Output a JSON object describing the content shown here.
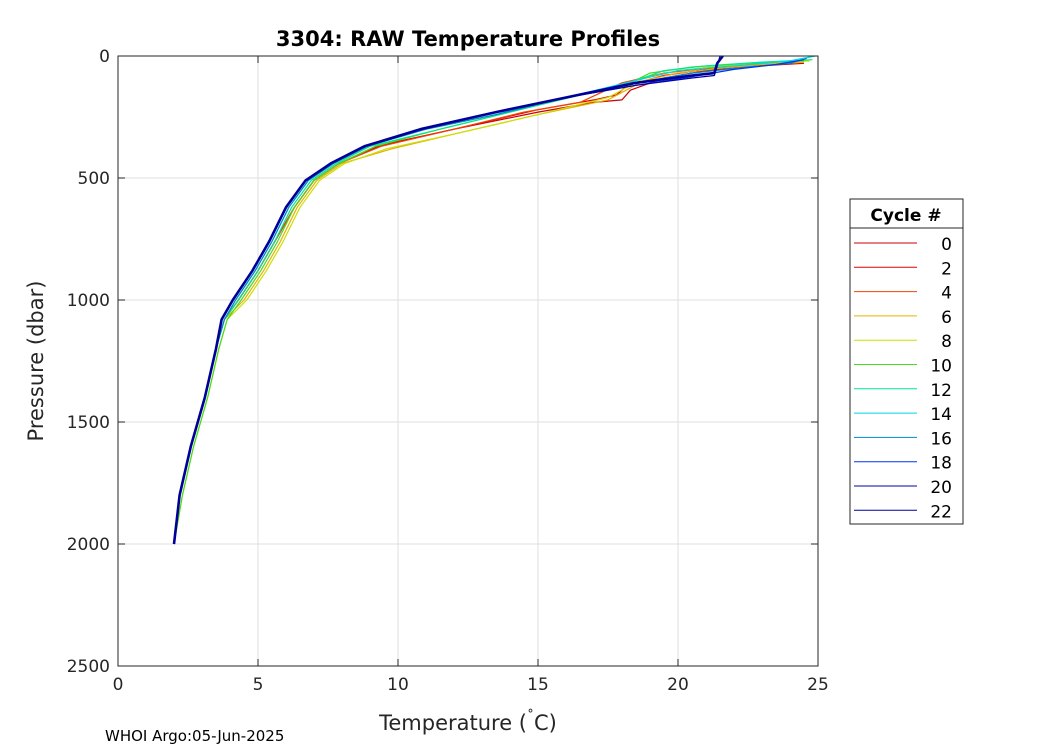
{
  "footer": "WHOI Argo:05-Jun-2025",
  "chart_data": {
    "type": "line",
    "title": "3304: RAW Temperature Profiles",
    "xlabel": "Temperature (",
    "xlabel_degree": "˚",
    "xlabel_unit": "C)",
    "ylabel": "Pressure (dbar)",
    "xlim": [
      0,
      25
    ],
    "ylim": [
      0,
      2500
    ],
    "y_reversed": true,
    "grid": true,
    "x_ticks": [
      "0",
      "5",
      "10",
      "15",
      "20",
      "25"
    ],
    "y_ticks": [
      "0",
      "500",
      "1000",
      "1500",
      "2000",
      "2500"
    ],
    "legend": {
      "title": "Cycle #",
      "placement": "right"
    },
    "series": [
      {
        "name": "0",
        "color": "#cc0000",
        "points": [
          [
            2.0,
            2000
          ],
          [
            2.2,
            1800
          ],
          [
            2.6,
            1600
          ],
          [
            3.1,
            1400
          ],
          [
            3.5,
            1200
          ],
          [
            3.8,
            1080
          ],
          [
            4.3,
            1000
          ],
          [
            5.0,
            880
          ],
          [
            5.6,
            760
          ],
          [
            6.3,
            620
          ],
          [
            7.0,
            510
          ],
          [
            7.9,
            440
          ],
          [
            9.3,
            370
          ],
          [
            12.0,
            300
          ],
          [
            15.0,
            230
          ],
          [
            17.0,
            190
          ],
          [
            18.0,
            180
          ],
          [
            18.3,
            140
          ],
          [
            19.5,
            90
          ],
          [
            21.0,
            60
          ],
          [
            23.0,
            40
          ],
          [
            24.5,
            30
          ]
        ]
      },
      {
        "name": "2",
        "color": "#e60000",
        "points": [
          [
            2.0,
            2000
          ],
          [
            2.2,
            1800
          ],
          [
            2.6,
            1600
          ],
          [
            3.1,
            1400
          ],
          [
            3.5,
            1200
          ],
          [
            3.8,
            1080
          ],
          [
            4.3,
            1000
          ],
          [
            5.0,
            880
          ],
          [
            5.6,
            760
          ],
          [
            6.3,
            620
          ],
          [
            7.0,
            510
          ],
          [
            7.9,
            440
          ],
          [
            9.2,
            370
          ],
          [
            12.0,
            300
          ],
          [
            15.0,
            220
          ],
          [
            17.0,
            180
          ],
          [
            17.8,
            160
          ],
          [
            18.2,
            120
          ],
          [
            19.5,
            80
          ],
          [
            21.0,
            55
          ],
          [
            22.5,
            40
          ],
          [
            24.0,
            30
          ]
        ]
      },
      {
        "name": "4",
        "color": "#ee4400",
        "points": [
          [
            2.0,
            2000
          ],
          [
            2.2,
            1800
          ],
          [
            2.6,
            1600
          ],
          [
            3.1,
            1400
          ],
          [
            3.5,
            1200
          ],
          [
            3.8,
            1080
          ],
          [
            4.3,
            1000
          ],
          [
            5.0,
            880
          ],
          [
            5.6,
            760
          ],
          [
            6.3,
            620
          ],
          [
            7.0,
            510
          ],
          [
            7.9,
            440
          ],
          [
            9.4,
            370
          ],
          [
            12.0,
            300
          ],
          [
            14.5,
            230
          ],
          [
            16.5,
            190
          ],
          [
            18.0,
            110
          ],
          [
            19.5,
            70
          ],
          [
            21.0,
            50
          ],
          [
            22.5,
            35
          ],
          [
            24.0,
            25
          ]
        ]
      },
      {
        "name": "6",
        "color": "#e6b000",
        "points": [
          [
            2.0,
            2000
          ],
          [
            2.2,
            1800
          ],
          [
            2.6,
            1600
          ],
          [
            3.1,
            1400
          ],
          [
            3.5,
            1200
          ],
          [
            3.8,
            1080
          ],
          [
            4.5,
            1000
          ],
          [
            5.2,
            880
          ],
          [
            5.8,
            760
          ],
          [
            6.4,
            620
          ],
          [
            7.1,
            510
          ],
          [
            8.0,
            440
          ],
          [
            9.8,
            380
          ],
          [
            12.0,
            320
          ],
          [
            15.0,
            240
          ],
          [
            17.5,
            180
          ],
          [
            18.8,
            100
          ],
          [
            20.0,
            70
          ],
          [
            21.5,
            50
          ],
          [
            23.0,
            35
          ],
          [
            24.5,
            25
          ]
        ]
      },
      {
        "name": "8",
        "color": "#c8e000",
        "points": [
          [
            2.0,
            2000
          ],
          [
            2.3,
            1800
          ],
          [
            2.7,
            1600
          ],
          [
            3.2,
            1400
          ],
          [
            3.6,
            1200
          ],
          [
            3.9,
            1080
          ],
          [
            4.6,
            1000
          ],
          [
            5.3,
            880
          ],
          [
            5.9,
            760
          ],
          [
            6.5,
            620
          ],
          [
            7.2,
            510
          ],
          [
            8.1,
            440
          ],
          [
            9.6,
            380
          ],
          [
            12.0,
            320
          ],
          [
            15.0,
            240
          ],
          [
            17.5,
            170
          ],
          [
            18.8,
            90
          ],
          [
            20.0,
            60
          ],
          [
            21.5,
            40
          ],
          [
            23.0,
            30
          ],
          [
            24.7,
            20
          ]
        ]
      },
      {
        "name": "10",
        "color": "#44dd22",
        "points": [
          [
            2.0,
            2000
          ],
          [
            2.3,
            1800
          ],
          [
            2.7,
            1600
          ],
          [
            3.2,
            1400
          ],
          [
            3.6,
            1200
          ],
          [
            3.9,
            1080
          ],
          [
            4.4,
            1000
          ],
          [
            5.1,
            880
          ],
          [
            5.7,
            760
          ],
          [
            6.3,
            620
          ],
          [
            7.0,
            510
          ],
          [
            7.9,
            440
          ],
          [
            9.2,
            370
          ],
          [
            11.5,
            300
          ],
          [
            14.0,
            230
          ],
          [
            16.5,
            160
          ],
          [
            18.3,
            110
          ],
          [
            19.0,
            70
          ],
          [
            20.5,
            45
          ],
          [
            22.5,
            30
          ],
          [
            24.5,
            20
          ]
        ]
      },
      {
        "name": "12",
        "color": "#00e690",
        "points": [
          [
            2.0,
            2000
          ],
          [
            2.2,
            1800
          ],
          [
            2.6,
            1600
          ],
          [
            3.1,
            1400
          ],
          [
            3.5,
            1200
          ],
          [
            3.8,
            1080
          ],
          [
            4.3,
            1000
          ],
          [
            5.0,
            880
          ],
          [
            5.6,
            760
          ],
          [
            6.2,
            620
          ],
          [
            6.9,
            510
          ],
          [
            7.8,
            440
          ],
          [
            9.0,
            370
          ],
          [
            11.5,
            300
          ],
          [
            14.0,
            230
          ],
          [
            16.5,
            160
          ],
          [
            18.5,
            100
          ],
          [
            19.5,
            60
          ],
          [
            21.0,
            40
          ],
          [
            23.0,
            25
          ],
          [
            24.8,
            15
          ]
        ]
      },
      {
        "name": "14",
        "color": "#00d4e6",
        "points": [
          [
            2.0,
            2000
          ],
          [
            2.2,
            1800
          ],
          [
            2.6,
            1600
          ],
          [
            3.1,
            1400
          ],
          [
            3.5,
            1200
          ],
          [
            3.8,
            1080
          ],
          [
            4.2,
            1000
          ],
          [
            4.9,
            880
          ],
          [
            5.5,
            760
          ],
          [
            6.1,
            620
          ],
          [
            6.8,
            510
          ],
          [
            7.7,
            440
          ],
          [
            8.9,
            370
          ],
          [
            11.0,
            300
          ],
          [
            13.5,
            240
          ],
          [
            16.0,
            170
          ],
          [
            18.5,
            100
          ],
          [
            20.0,
            60
          ],
          [
            22.0,
            40
          ],
          [
            24.0,
            20
          ],
          [
            24.9,
            0
          ]
        ]
      },
      {
        "name": "16",
        "color": "#0088cc",
        "points": [
          [
            2.0,
            2000
          ],
          [
            2.2,
            1800
          ],
          [
            2.6,
            1600
          ],
          [
            3.1,
            1400
          ],
          [
            3.5,
            1200
          ],
          [
            3.8,
            1080
          ],
          [
            4.2,
            1000
          ],
          [
            4.9,
            880
          ],
          [
            5.5,
            760
          ],
          [
            6.1,
            620
          ],
          [
            6.8,
            510
          ],
          [
            7.7,
            440
          ],
          [
            8.9,
            370
          ],
          [
            11.0,
            300
          ],
          [
            13.5,
            240
          ],
          [
            16.0,
            170
          ],
          [
            18.5,
            110
          ],
          [
            20.5,
            70
          ],
          [
            22.5,
            45
          ],
          [
            24.0,
            30
          ],
          [
            24.6,
            10
          ]
        ]
      },
      {
        "name": "18",
        "color": "#0033ee",
        "points": [
          [
            2.0,
            2000
          ],
          [
            2.2,
            1800
          ],
          [
            2.6,
            1600
          ],
          [
            3.1,
            1400
          ],
          [
            3.5,
            1200
          ],
          [
            3.7,
            1080
          ],
          [
            4.1,
            1000
          ],
          [
            4.8,
            880
          ],
          [
            5.4,
            760
          ],
          [
            6.0,
            620
          ],
          [
            6.7,
            510
          ],
          [
            7.6,
            440
          ],
          [
            8.8,
            370
          ],
          [
            10.8,
            300
          ],
          [
            13.5,
            230
          ],
          [
            16.0,
            170
          ],
          [
            18.5,
            120
          ],
          [
            20.5,
            85
          ],
          [
            22.0,
            55
          ],
          [
            23.5,
            35
          ],
          [
            24.5,
            15
          ]
        ]
      },
      {
        "name": "20",
        "color": "#0000aa",
        "points": [
          [
            2.0,
            2000
          ],
          [
            2.2,
            1800
          ],
          [
            2.6,
            1600
          ],
          [
            3.1,
            1400
          ],
          [
            3.5,
            1200
          ],
          [
            3.7,
            1080
          ],
          [
            4.1,
            1000
          ],
          [
            4.8,
            880
          ],
          [
            5.4,
            760
          ],
          [
            6.0,
            620
          ],
          [
            6.7,
            510
          ],
          [
            7.6,
            440
          ],
          [
            8.8,
            370
          ],
          [
            10.8,
            300
          ],
          [
            13.5,
            230
          ],
          [
            16.0,
            170
          ],
          [
            18.5,
            120
          ],
          [
            20.5,
            90
          ],
          [
            21.3,
            80
          ],
          [
            21.4,
            40
          ],
          [
            21.5,
            0
          ]
        ]
      },
      {
        "name": "22",
        "color": "#000099",
        "points": [
          [
            2.0,
            2000
          ],
          [
            2.2,
            1800
          ],
          [
            2.6,
            1600
          ],
          [
            3.1,
            1400
          ],
          [
            3.5,
            1200
          ],
          [
            3.7,
            1080
          ],
          [
            4.1,
            1000
          ],
          [
            4.8,
            880
          ],
          [
            5.4,
            760
          ],
          [
            6.0,
            620
          ],
          [
            6.7,
            510
          ],
          [
            7.6,
            440
          ],
          [
            8.8,
            370
          ],
          [
            10.8,
            300
          ],
          [
            13.5,
            230
          ],
          [
            16.0,
            170
          ],
          [
            18.5,
            110
          ],
          [
            20.5,
            80
          ],
          [
            21.3,
            70
          ],
          [
            21.4,
            30
          ],
          [
            21.6,
            0
          ]
        ]
      }
    ]
  }
}
